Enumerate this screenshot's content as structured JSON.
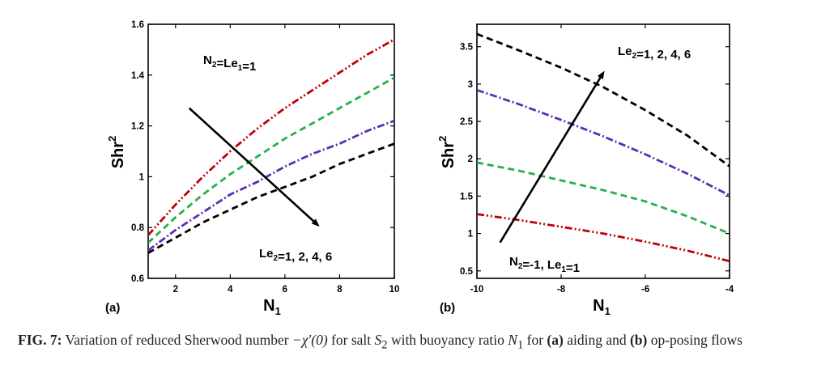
{
  "chart_data": [
    {
      "type": "line",
      "panel_label": "(a)",
      "xlabel": "N",
      "xlabel_sub": "1",
      "ylabel": "Shr",
      "ylabel_sup": "2",
      "xlim": [
        1,
        10
      ],
      "ylim": [
        0.6,
        1.6
      ],
      "xticks": [
        2,
        4,
        6,
        8,
        10
      ],
      "yticks": [
        0.6,
        0.8,
        1,
        1.2,
        1.4,
        1.6
      ],
      "ytick_labels": [
        "0.6",
        "0.8",
        "1",
        "1.2",
        "1.4",
        "1.6"
      ],
      "x": [
        1,
        2,
        3,
        4,
        5,
        6,
        7,
        8,
        9,
        10
      ],
      "series": [
        {
          "le2": 1,
          "color": "#c00000",
          "dash": "dashdotdot",
          "values": [
            0.77,
            0.89,
            1.0,
            1.1,
            1.19,
            1.27,
            1.34,
            1.41,
            1.48,
            1.54
          ]
        },
        {
          "le2": 2,
          "color": "#22b14c",
          "dash": "dash",
          "values": [
            0.74,
            0.84,
            0.93,
            1.01,
            1.08,
            1.15,
            1.21,
            1.27,
            1.33,
            1.39
          ]
        },
        {
          "le2": 4,
          "color": "#5b2db5",
          "dash": "dashdot",
          "values": [
            0.71,
            0.79,
            0.86,
            0.93,
            0.98,
            1.04,
            1.09,
            1.13,
            1.18,
            1.22
          ]
        },
        {
          "le2": 6,
          "color": "#000000",
          "dash": "dash",
          "values": [
            0.7,
            0.76,
            0.82,
            0.87,
            0.92,
            0.96,
            1.0,
            1.05,
            1.09,
            1.13
          ]
        }
      ],
      "annotation_top": "N₂=Le₁=1",
      "annotation_arrow": "Le₂=1, 2, 4, 6",
      "arrow_from": [
        2.5,
        1.27
      ],
      "arrow_to": [
        7.2,
        0.81
      ]
    },
    {
      "type": "line",
      "panel_label": "(b)",
      "xlabel": "N",
      "xlabel_sub": "1",
      "ylabel": "Shr",
      "ylabel_sup": "2",
      "xlim": [
        -10,
        -4
      ],
      "ylim": [
        0.4,
        3.8
      ],
      "xticks": [
        -10,
        -8,
        -6,
        -4
      ],
      "yticks": [
        0.5,
        1,
        1.5,
        2,
        2.5,
        3,
        3.5
      ],
      "ytick_labels": [
        "0.5",
        "1",
        "1.5",
        "2",
        "2.5",
        "3",
        "3.5"
      ],
      "x": [
        -10,
        -9,
        -8,
        -7,
        -6,
        -5,
        -4
      ],
      "series": [
        {
          "le2": 1,
          "color": "#c00000",
          "dash": "dashdotdot",
          "values": [
            1.26,
            1.18,
            1.09,
            1.0,
            0.89,
            0.77,
            0.63
          ]
        },
        {
          "le2": 2,
          "color": "#22b14c",
          "dash": "dash",
          "values": [
            1.95,
            1.84,
            1.71,
            1.58,
            1.43,
            1.23,
            1.0
          ]
        },
        {
          "le2": 4,
          "color": "#5b2db5",
          "dash": "dashdot",
          "values": [
            2.92,
            2.73,
            2.52,
            2.3,
            2.06,
            1.8,
            1.51
          ]
        },
        {
          "le2": 6,
          "color": "#000000",
          "dash": "dash",
          "values": [
            3.67,
            3.45,
            3.22,
            2.96,
            2.65,
            2.31,
            1.9
          ]
        }
      ],
      "annotation_bottom": "N₂=-1, Le₁=1",
      "annotation_arrow": "Le₂=1, 2, 4, 6",
      "arrow_from": [
        -9.45,
        0.88
      ],
      "arrow_to": [
        -7.0,
        3.15
      ]
    }
  ],
  "caption": {
    "fig_label": "FIG. 7:",
    "text_1": " Variation of reduced Sherwood number ",
    "math_1": "−χ′(0)",
    "text_2": " for salt ",
    "math_2": "S",
    "math_2_sub": "2",
    "text_3": " with buoyancy ratio ",
    "math_3": "N",
    "math_3_sub": "1",
    "text_4": " for ",
    "bold_a": "(a)",
    "text_5": " aiding and ",
    "bold_b": "(b)",
    "text_6": " op-posing flows"
  }
}
